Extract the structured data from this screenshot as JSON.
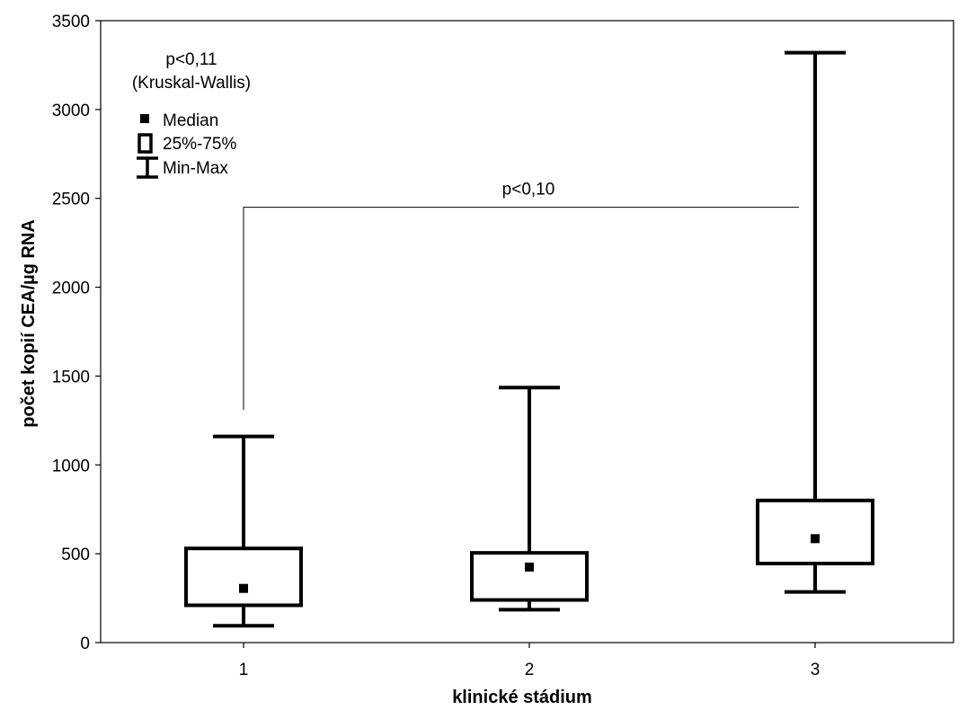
{
  "chart_data": {
    "type": "box",
    "title": "",
    "xlabel": "klinické stádium",
    "ylabel": "počet kopií CEA/µg RNA",
    "categories": [
      "1",
      "2",
      "3"
    ],
    "ylim": [
      0,
      3500
    ],
    "yticks": [
      0,
      500,
      1000,
      1500,
      2000,
      2500,
      3000,
      3500
    ],
    "boxes": [
      {
        "category": "1",
        "min": 95,
        "q1": 210,
        "median": 305,
        "q3": 530,
        "max": 1160
      },
      {
        "category": "2",
        "min": 185,
        "q1": 240,
        "median": 425,
        "q3": 505,
        "max": 1435
      },
      {
        "category": "3",
        "min": 285,
        "q1": 445,
        "median": 585,
        "q3": 800,
        "max": 3320
      }
    ],
    "grid": false,
    "legend": {
      "placement": "top-left",
      "items": [
        {
          "symbol": "median-square",
          "label": "Median"
        },
        {
          "symbol": "box",
          "label": "25%-75%"
        },
        {
          "symbol": "whisker",
          "label": "Min-Max"
        }
      ]
    },
    "annotations": {
      "kruskal_p": "p<0,11",
      "kruskal_test": "(Kruskal-Wallis)",
      "comparison": {
        "label": "p<0,10",
        "from": "1",
        "to": "3",
        "y": 2450
      }
    },
    "colors": {
      "stroke": "#000000",
      "background": "#ffffff"
    }
  }
}
